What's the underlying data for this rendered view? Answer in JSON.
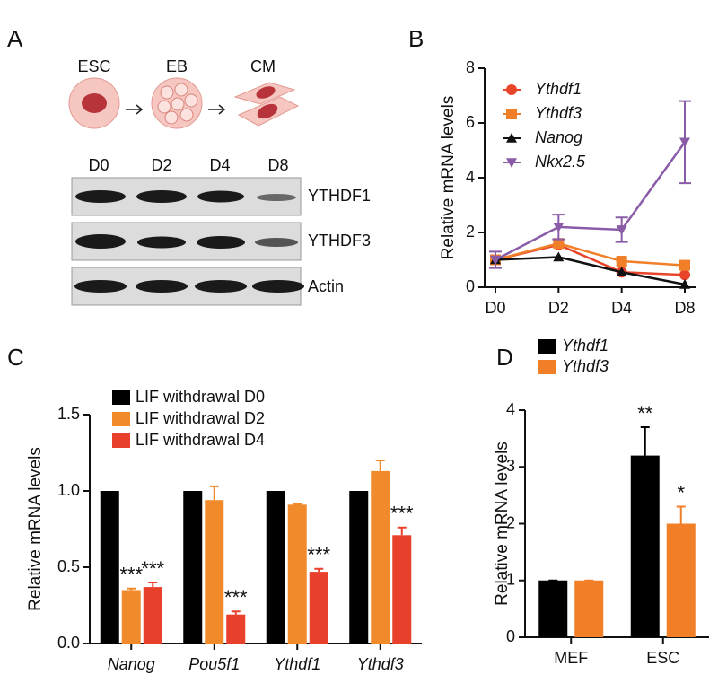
{
  "panel_a": {
    "label": "A",
    "stages": [
      "ESC",
      "EB",
      "CM"
    ],
    "lanes": [
      "D0",
      "D2",
      "D4",
      "D8"
    ],
    "blots": [
      "YTHDF1",
      "YTHDF3",
      "Actin"
    ]
  },
  "chart_data": [
    {
      "panel": "B",
      "type": "line",
      "ylabel": "Relative mRNA levels",
      "categories": [
        "D0",
        "D2",
        "D4",
        "D8"
      ],
      "ylim": [
        0,
        8
      ],
      "yticks": [
        0,
        2,
        4,
        6,
        8
      ],
      "legend": "top-left",
      "legend_italic": true,
      "series": [
        {
          "name": "Ythdf1",
          "color": "#e8442a",
          "marker": "circle",
          "values": [
            1,
            1.55,
            0.55,
            0.45
          ]
        },
        {
          "name": "Ythdf3",
          "color": "#f07f28",
          "marker": "square",
          "values": [
            1,
            1.6,
            0.95,
            0.8
          ]
        },
        {
          "name": "Nanog",
          "color": "#111111",
          "marker": "triangle",
          "values": [
            1,
            1.1,
            0.55,
            0.1
          ]
        },
        {
          "name": "Nkx2.5",
          "color": "#8a5ca8",
          "marker": "triangle-down",
          "values": [
            1,
            2.2,
            2.1,
            5.3
          ],
          "errors": [
            0.3,
            0.45,
            0.45,
            1.5
          ]
        }
      ]
    },
    {
      "panel": "C",
      "type": "bar",
      "ylabel": "Relative mRNA levels",
      "categories": [
        "Nanog",
        "Pou5f1",
        "Ythdf1",
        "Ythdf3"
      ],
      "category_italic": true,
      "ylim": [
        0,
        1.5
      ],
      "yticks": [
        {
          "value": 0,
          "label": "0.0"
        },
        {
          "value": 0.5,
          "label": "0.5"
        },
        {
          "value": 1,
          "label": "1.0"
        },
        {
          "value": 1.5,
          "label": "1.5"
        }
      ],
      "legend": "top",
      "series": [
        {
          "name": "LIF withdrawal D0",
          "color": "#000000",
          "values": [
            1,
            1,
            1,
            1
          ]
        },
        {
          "name": "LIF withdrawal D2",
          "color": "#f08a2a",
          "values": [
            0.35,
            0.94,
            0.91,
            1.13
          ],
          "errors": [
            0.01,
            0.09,
            0.005,
            0.07
          ],
          "significance": [
            "***",
            null,
            null,
            null
          ]
        },
        {
          "name": "LIF withdrawal D4",
          "color": "#e8402a",
          "values": [
            0.37,
            0.19,
            0.47,
            0.71
          ],
          "errors": [
            0.03,
            0.02,
            0.02,
            0.05
          ],
          "significance": [
            "***",
            "***",
            "***",
            "***"
          ]
        }
      ]
    },
    {
      "panel": "D",
      "type": "bar",
      "ylabel": "Relative mRNA levels",
      "categories": [
        "MEF",
        "ESC"
      ],
      "ylim": [
        0,
        4
      ],
      "yticks": [
        0,
        1,
        2,
        3,
        4
      ],
      "legend": "top",
      "legend_italic": true,
      "series": [
        {
          "name": "Ythdf1",
          "color": "#000000",
          "values": [
            1,
            3.2
          ],
          "errors": [
            0,
            0.5
          ],
          "significance": [
            null,
            "**"
          ]
        },
        {
          "name": "Ythdf3",
          "color": "#f07f28",
          "values": [
            1,
            2
          ],
          "errors": [
            0,
            0.3
          ],
          "significance": [
            null,
            "*"
          ]
        }
      ]
    }
  ]
}
